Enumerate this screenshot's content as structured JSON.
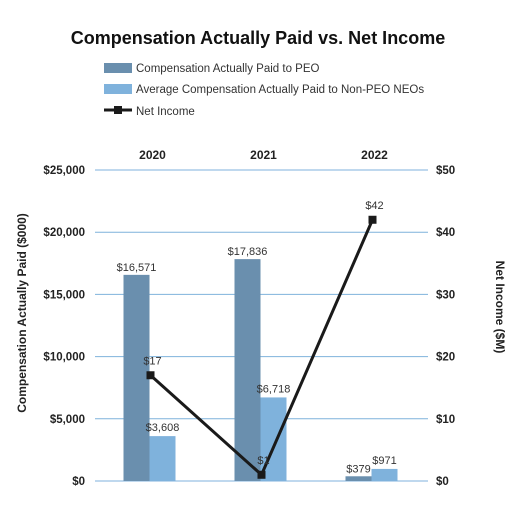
{
  "chart_data": {
    "type": "bar",
    "title": "Compensation Actually Paid vs. Net Income",
    "categories": [
      "2020",
      "2021",
      "2022"
    ],
    "series": [
      {
        "name": "Compensation Actually Paid to PEO",
        "type": "bar",
        "axis": "left",
        "values": [
          16571,
          17836,
          379
        ],
        "labels": [
          "$16,571",
          "$17,836",
          "$379"
        ],
        "color": "#6a8fae"
      },
      {
        "name": "Average Compensation Actually Paid to Non-PEO NEOs",
        "type": "bar",
        "axis": "left",
        "values": [
          3608,
          6718,
          971
        ],
        "labels": [
          "$3,608",
          "$6,718",
          "$971"
        ],
        "color": "#7fb2dc"
      },
      {
        "name": "Net Income",
        "type": "line",
        "axis": "right",
        "values": [
          17,
          1,
          42
        ],
        "labels": [
          "$17",
          "$1",
          "$42"
        ],
        "color": "#1a1a1a"
      }
    ],
    "ylabel": "Compensation Actually Paid ($000)",
    "ylabel_right": "Net Income ($M)",
    "ylim": [
      0,
      25000
    ],
    "ylim_right": [
      0,
      50
    ],
    "yticks": [
      "$0",
      "$5,000",
      "$10,000",
      "$15,000",
      "$20,000",
      "$25,000"
    ],
    "yticks_right": [
      "$0",
      "$10",
      "$20",
      "$30",
      "$40",
      "$50"
    ],
    "grid": true,
    "legend_placement": "top",
    "gridline_color": "#7fb2dc"
  }
}
